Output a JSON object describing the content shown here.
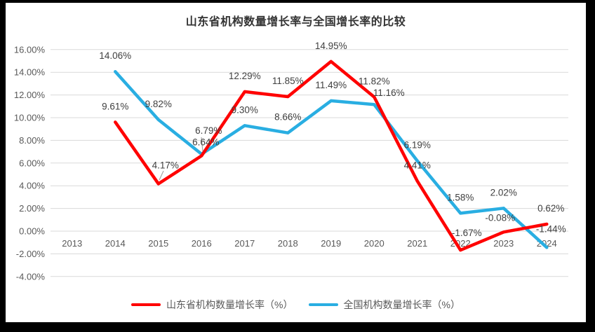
{
  "frame": {
    "background": "#000000",
    "panel_background": "#FFFFFF"
  },
  "chart_data": {
    "type": "line",
    "title": "山东省机构数量增长率与全国增长率的比较",
    "categories": [
      "2013",
      "2014",
      "2015",
      "2016",
      "2017",
      "2018",
      "2019",
      "2020",
      "2021",
      "2022",
      "2023",
      "2024"
    ],
    "series": [
      {
        "name": "山东省机构数量增长率（%）",
        "color": "#FF0000",
        "values": [
          null,
          9.61,
          4.17,
          6.64,
          12.29,
          11.85,
          14.95,
          11.82,
          4.41,
          -1.67,
          -0.08,
          0.62
        ],
        "labels": [
          null,
          "9.61%",
          "4.17%",
          "6.64%",
          "12.29%",
          "11.85%",
          "14.95%",
          "11.82%",
          "4.41%",
          "-1.67%",
          "-0.08%",
          "0.62%"
        ]
      },
      {
        "name": "全国机构数量增长率（%）",
        "color": "#29AEE2",
        "values": [
          null,
          14.06,
          9.82,
          6.79,
          9.3,
          8.66,
          11.49,
          11.16,
          6.19,
          1.58,
          2.02,
          -1.44
        ],
        "labels": [
          null,
          "14.06%",
          "9.82%",
          "6.79%",
          "9.30%",
          "8.66%",
          "11.49%",
          "11.16%",
          "6.19%",
          "1.58%",
          "2.02%",
          "-1.44%"
        ]
      }
    ],
    "y_axis": {
      "min": -4,
      "max": 16,
      "step": 2,
      "tick_labels": [
        "16.00%",
        "14.00%",
        "12.00%",
        "10.00%",
        "8.00%",
        "6.00%",
        "4.00%",
        "2.00%",
        "0.00%",
        "-2.00%",
        "-4.00%"
      ]
    },
    "grid": true,
    "legend_position": "bottom",
    "data_labels": true,
    "style": {
      "gridline_color": "#D9D9D9",
      "axis_label_color": "#595959",
      "data_label_color": "#404040",
      "leader_line_color": "#A6A6A6"
    }
  }
}
